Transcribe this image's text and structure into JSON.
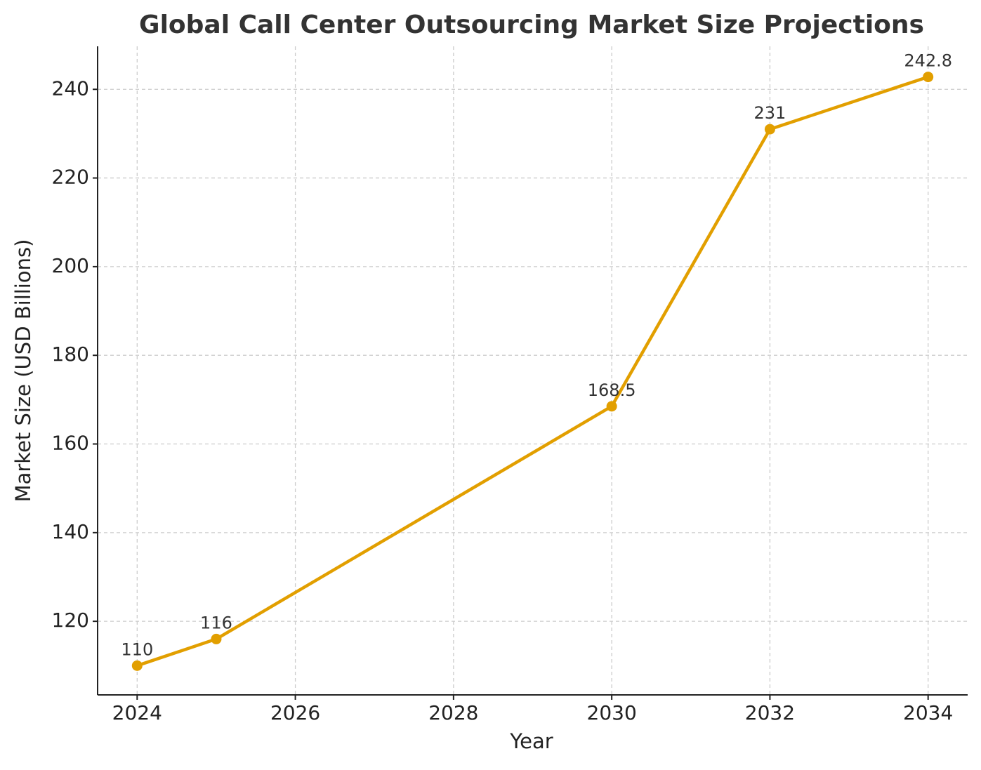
{
  "chart_data": {
    "type": "line",
    "title": "Global Call Center Outsourcing Market Size Projections",
    "x_label": "Year",
    "y_label": "Market Size (USD Billions)",
    "x": [
      2024,
      2025,
      2030,
      2032,
      2034
    ],
    "values": [
      110,
      116,
      168.5,
      231,
      242.8
    ],
    "color": "#e29f00",
    "xlim": [
      2023.5,
      2034.5
    ],
    "ylim": [
      103.4,
      249.7
    ],
    "xticks": [
      2024,
      2026,
      2028,
      2030,
      2032,
      2034
    ],
    "yticks": [
      120,
      140,
      160,
      180,
      200,
      220,
      240
    ],
    "grid": true
  }
}
